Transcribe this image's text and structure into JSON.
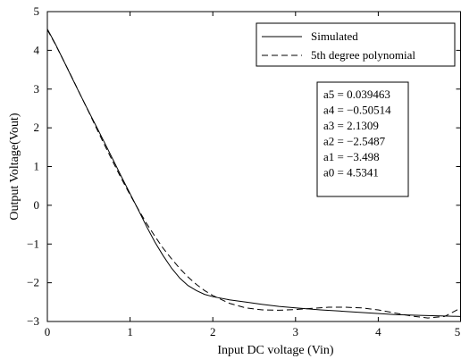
{
  "chart_data": {
    "type": "line",
    "xlabel": "Input DC voltage (Vin)",
    "ylabel": "Output Voltage(Vout)",
    "xlim": [
      0,
      5
    ],
    "ylim": [
      -3,
      5
    ],
    "xticks": [
      "0",
      "1",
      "2",
      "3",
      "4",
      "5"
    ],
    "yticks": [
      "−3",
      "−2",
      "−1",
      "0",
      "1",
      "2",
      "3",
      "4",
      "5"
    ],
    "legend_position": "top-right",
    "series": [
      {
        "name": "Simulated",
        "style": "solid",
        "color": "#000000",
        "points": [
          [
            0,
            4.55
          ],
          [
            0.1,
            4.15
          ],
          [
            0.2,
            3.72
          ],
          [
            0.3,
            3.28
          ],
          [
            0.4,
            2.85
          ],
          [
            0.5,
            2.42
          ],
          [
            0.6,
            2.0
          ],
          [
            0.7,
            1.58
          ],
          [
            0.8,
            1.15
          ],
          [
            0.9,
            0.72
          ],
          [
            1.0,
            0.3
          ],
          [
            1.1,
            -0.12
          ],
          [
            1.2,
            -0.55
          ],
          [
            1.3,
            -0.95
          ],
          [
            1.4,
            -1.3
          ],
          [
            1.5,
            -1.62
          ],
          [
            1.6,
            -1.88
          ],
          [
            1.7,
            -2.07
          ],
          [
            1.8,
            -2.2
          ],
          [
            1.9,
            -2.3
          ],
          [
            2.0,
            -2.36
          ],
          [
            2.2,
            -2.44
          ],
          [
            2.4,
            -2.5
          ],
          [
            2.6,
            -2.56
          ],
          [
            2.8,
            -2.61
          ],
          [
            3.0,
            -2.65
          ],
          [
            3.3,
            -2.7
          ],
          [
            3.6,
            -2.74
          ],
          [
            3.9,
            -2.78
          ],
          [
            4.2,
            -2.82
          ],
          [
            4.5,
            -2.84
          ],
          [
            4.8,
            -2.86
          ],
          [
            5.0,
            -2.87
          ]
        ]
      },
      {
        "name": "5th degree polynomial",
        "style": "dashed",
        "color": "#000000",
        "points": [
          [
            0,
            4.53
          ],
          [
            0.1,
            4.14
          ],
          [
            0.2,
            3.72
          ],
          [
            0.3,
            3.29
          ],
          [
            0.4,
            2.85
          ],
          [
            0.5,
            2.41
          ],
          [
            0.6,
            1.96
          ],
          [
            0.7,
            1.52
          ],
          [
            0.8,
            1.09
          ],
          [
            0.9,
            0.67
          ],
          [
            1.0,
            0.27
          ],
          [
            1.1,
            -0.11
          ],
          [
            1.2,
            -0.47
          ],
          [
            1.3,
            -0.8
          ],
          [
            1.4,
            -1.11
          ],
          [
            1.5,
            -1.38
          ],
          [
            1.6,
            -1.63
          ],
          [
            1.7,
            -1.85
          ],
          [
            1.8,
            -2.04
          ],
          [
            1.9,
            -2.2
          ],
          [
            2.0,
            -2.33
          ],
          [
            2.2,
            -2.53
          ],
          [
            2.4,
            -2.65
          ],
          [
            2.6,
            -2.7
          ],
          [
            2.8,
            -2.71
          ],
          [
            3.0,
            -2.69
          ],
          [
            3.2,
            -2.66
          ],
          [
            3.4,
            -2.63
          ],
          [
            3.6,
            -2.63
          ],
          [
            3.8,
            -2.65
          ],
          [
            4.0,
            -2.7
          ],
          [
            4.2,
            -2.78
          ],
          [
            4.4,
            -2.86
          ],
          [
            4.6,
            -2.91
          ],
          [
            4.8,
            -2.87
          ],
          [
            5.0,
            -2.65
          ]
        ]
      }
    ],
    "coefficients": [
      "a5 = 0.039463",
      "a4 = −0.50514",
      "a3 = 2.1309",
      "a2 = −2.5487",
      "a1 = −3.498",
      "a0 = 4.5341"
    ]
  }
}
